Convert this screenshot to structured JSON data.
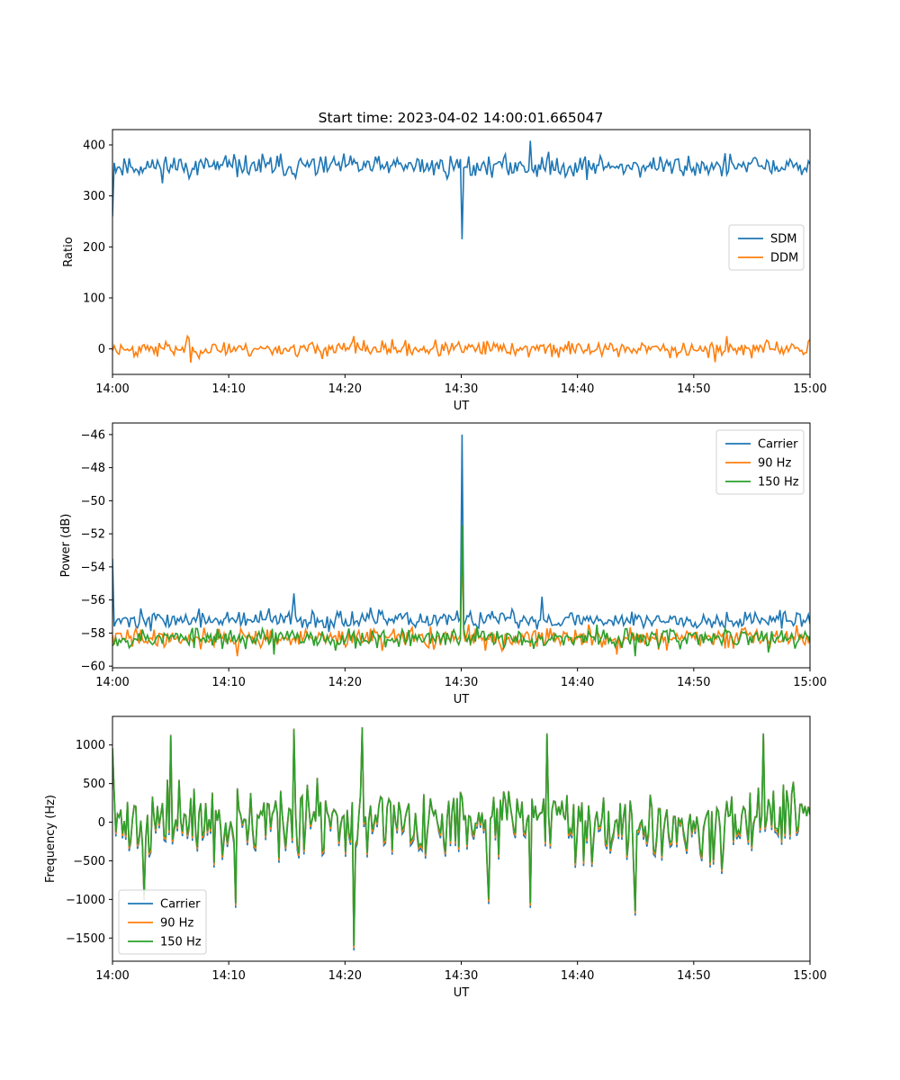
{
  "figure": {
    "title": "Start time: 2023-04-02 14:00:01.665047"
  },
  "chart_data": [
    {
      "type": "line",
      "xlabel": "UT",
      "ylabel": "Ratio",
      "x_range_minutes": [
        0,
        60
      ],
      "x_tick_labels": [
        "14:00",
        "14:10",
        "14:20",
        "14:30",
        "14:40",
        "14:50",
        "15:00"
      ],
      "x_ticks": [
        0,
        10,
        20,
        30,
        40,
        50,
        60
      ],
      "ylim": [
        -50,
        430
      ],
      "y_ticks": [
        0,
        100,
        200,
        300,
        400
      ],
      "legend_position": "center-right",
      "series": [
        {
          "name": "SDM",
          "color": "#1f77b4",
          "baseline": 358,
          "noise": 22,
          "seed": 11,
          "events": [
            {
              "x": 0.0,
              "value": 260
            },
            {
              "x": 30.05,
              "value": 215
            },
            {
              "x": 36.0,
              "value": 408
            }
          ]
        },
        {
          "name": "DDM",
          "color": "#ff7f0e",
          "baseline": 0,
          "noise": 15,
          "seed": 23,
          "events": [
            {
              "x": 6.4,
              "value": 25
            },
            {
              "x": 6.8,
              "value": -27
            },
            {
              "x": 20.8,
              "value": 25
            },
            {
              "x": 52.8,
              "value": 25
            },
            {
              "x": 51.8,
              "value": -26
            }
          ]
        }
      ]
    },
    {
      "type": "line",
      "xlabel": "UT",
      "ylabel": "Power (dB)",
      "x_range_minutes": [
        0,
        60
      ],
      "x_tick_labels": [
        "14:00",
        "14:10",
        "14:20",
        "14:30",
        "14:40",
        "14:50",
        "15:00"
      ],
      "x_ticks": [
        0,
        10,
        20,
        30,
        40,
        50,
        60
      ],
      "ylim": [
        -60.1,
        -45.3
      ],
      "y_ticks": [
        -60,
        -58,
        -56,
        -54,
        -52,
        -50,
        -48,
        -46
      ],
      "legend_position": "top-right",
      "series": [
        {
          "name": "Carrier",
          "color": "#1f77b4",
          "baseline": -57.2,
          "noise": 0.55,
          "seed": 37,
          "events": [
            {
              "x": 0.0,
              "value": -53.5
            },
            {
              "x": 30.05,
              "value": -46.0
            },
            {
              "x": 15.6,
              "value": -55.6
            },
            {
              "x": 37.0,
              "value": -55.8
            }
          ]
        },
        {
          "name": "90 Hz",
          "color": "#ff7f0e",
          "baseline": -58.3,
          "noise": 0.6,
          "seed": 41,
          "events": [
            {
              "x": 30.05,
              "value": -52.5
            },
            {
              "x": 10.8,
              "value": -59.4
            },
            {
              "x": 43.4,
              "value": -59.3
            }
          ]
        },
        {
          "name": "150 Hz",
          "color": "#2ca02c",
          "baseline": -58.3,
          "noise": 0.6,
          "seed": 53,
          "events": [
            {
              "x": 30.05,
              "value": -51.5
            },
            {
              "x": 13.9,
              "value": -59.3
            },
            {
              "x": 45.0,
              "value": -59.4
            }
          ]
        }
      ]
    },
    {
      "type": "line",
      "xlabel": "UT",
      "ylabel": "Frequency (Hz)",
      "x_range_minutes": [
        0,
        60
      ],
      "x_tick_labels": [
        "14:00",
        "14:10",
        "14:20",
        "14:30",
        "14:40",
        "14:50",
        "15:00"
      ],
      "x_ticks": [
        0,
        10,
        20,
        30,
        40,
        50,
        60
      ],
      "ylim": [
        -1800,
        1370
      ],
      "y_ticks": [
        -1500,
        -1000,
        -500,
        0,
        500,
        1000
      ],
      "legend_position": "bottom-left",
      "series_offsets": [
        -60,
        -30,
        0
      ],
      "base": {
        "baseline": 0,
        "noise": 430,
        "seed": 71,
        "events": [
          {
            "x": 0.0,
            "value": 950
          },
          {
            "x": 2.7,
            "value": -950
          },
          {
            "x": 5.0,
            "value": 1120
          },
          {
            "x": 10.6,
            "value": -1050
          },
          {
            "x": 15.55,
            "value": 1200
          },
          {
            "x": 20.8,
            "value": -1600
          },
          {
            "x": 21.5,
            "value": 1220
          },
          {
            "x": 32.4,
            "value": -1000
          },
          {
            "x": 35.9,
            "value": -1050
          },
          {
            "x": 37.4,
            "value": 1140
          },
          {
            "x": 44.9,
            "value": -1150
          },
          {
            "x": 56.0,
            "value": 1140
          }
        ]
      },
      "series": [
        {
          "name": "Carrier",
          "color": "#1f77b4"
        },
        {
          "name": "90 Hz",
          "color": "#ff7f0e"
        },
        {
          "name": "150 Hz",
          "color": "#2ca02c"
        }
      ]
    }
  ]
}
